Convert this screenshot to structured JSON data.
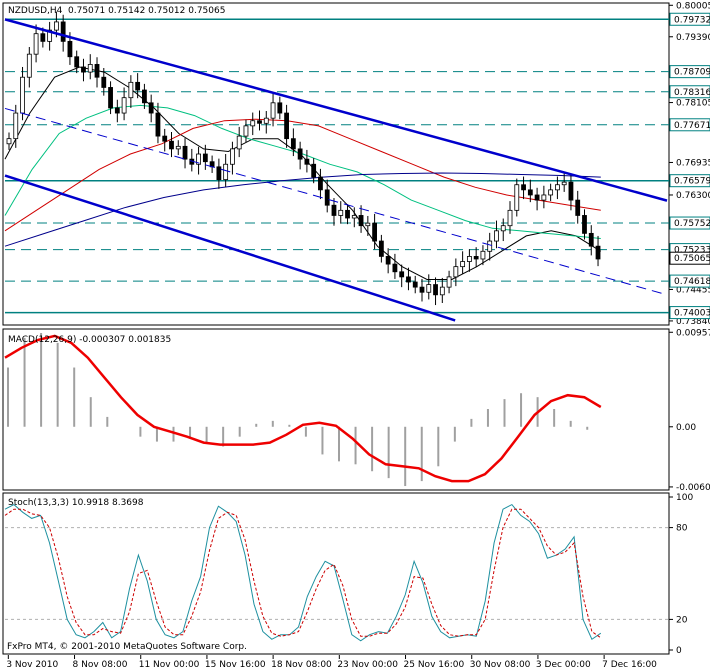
{
  "colors": {
    "frame": "#000000",
    "candle": "#000000",
    "channel": "#0000cc",
    "level_line": "#008080",
    "ma_fast": "#000000",
    "ma_mid": "#00c080",
    "ma_red": "#d00000",
    "ma_blue": "#00008b",
    "macd_signal": "#ee0000",
    "macd_hist": "#a0a0a0",
    "stoch_main": "#1e90a0",
    "stoch_signal": "#cc0000",
    "price_box_bg": "#ffffff"
  },
  "chart_data": [
    {
      "type": "line",
      "symbol": "NZDUSD,H4",
      "ohlc_text": "0.75071 0.75142 0.75012 0.75065",
      "current_price": 0.75065,
      "y_ticks": [
        "0.80005",
        "0.79390",
        "0.78105",
        "0.76935",
        "0.76300",
        "0.74455",
        "0.73840"
      ],
      "y_ticks_values": [
        0.80005,
        0.7939,
        0.78105,
        0.76935,
        0.763,
        0.74455,
        0.7384
      ],
      "ylim": [
        0.7378,
        0.8003
      ],
      "price_labels": [
        "0.79732",
        "0.78709",
        "0.78316",
        "0.77671",
        "0.76579",
        "0.75752",
        "0.75233",
        "0.74618",
        "0.74003"
      ],
      "solid_levels": [
        0.79732,
        0.76579,
        0.74003
      ],
      "dashed_levels": [
        0.78709,
        0.78316,
        0.77671,
        0.75752,
        0.75233,
        0.74618
      ],
      "channel": {
        "upper": [
          [
            0.0,
            0.7973
          ],
          [
            1.0,
            0.7619
          ]
        ],
        "lower": [
          [
            0.0,
            0.7668
          ],
          [
            0.68,
            0.7385
          ]
        ],
        "middle": [
          [
            0.0,
            0.7799
          ],
          [
            1.0,
            0.7435
          ]
        ]
      },
      "close_series": [
        0.774,
        0.779,
        0.786,
        0.7905,
        0.7945,
        0.793,
        0.7952,
        0.7968,
        0.793,
        0.79,
        0.788,
        0.787,
        0.7885,
        0.786,
        0.784,
        0.78,
        0.779,
        0.782,
        0.785,
        0.7835,
        0.781,
        0.779,
        0.7745,
        0.7735,
        0.772,
        0.7725,
        0.77,
        0.769,
        0.771,
        0.7695,
        0.7685,
        0.766,
        0.769,
        0.772,
        0.7745,
        0.7765,
        0.7775,
        0.777,
        0.778,
        0.781,
        0.779,
        0.774,
        0.772,
        0.77,
        0.769,
        0.7665,
        0.764,
        0.761,
        0.759,
        0.76,
        0.7585,
        0.759,
        0.757,
        0.7575,
        0.754,
        0.751,
        0.7495,
        0.748,
        0.747,
        0.746,
        0.745,
        0.744,
        0.7455,
        0.7435,
        0.745,
        0.747,
        0.749,
        0.75,
        0.751,
        0.7505,
        0.752,
        0.754,
        0.756,
        0.757,
        0.76,
        0.765,
        0.764,
        0.763,
        0.762,
        0.763,
        0.764,
        0.765,
        0.7655,
        0.762,
        0.759,
        0.7555,
        0.753,
        0.7505
      ],
      "moving_averages": [
        {
          "color": "ma_fast",
          "values": [
            0.77,
            0.779,
            0.786,
            0.788,
            0.787,
            0.784,
            0.78,
            0.775,
            0.772,
            0.7715,
            0.774,
            0.774,
            0.7705,
            0.765,
            0.76,
            0.753,
            0.749,
            0.7465,
            0.7465,
            0.749,
            0.752,
            0.755,
            0.756,
            0.755,
            0.752
          ]
        },
        {
          "color": "ma_mid",
          "values": [
            0.759,
            0.768,
            0.775,
            0.778,
            0.78,
            0.7805,
            0.78,
            0.7785,
            0.776,
            0.774,
            0.7725,
            0.771,
            0.769,
            0.7675,
            0.765,
            0.762,
            0.76,
            0.758,
            0.7565,
            0.756,
            0.7555,
            0.755,
            0.7545
          ]
        },
        {
          "color": "ma_red",
          "values": [
            0.756,
            0.76,
            0.764,
            0.768,
            0.771,
            0.773,
            0.776,
            0.7775,
            0.7778,
            0.7775,
            0.7765,
            0.774,
            0.7715,
            0.769,
            0.7665,
            0.7645,
            0.763,
            0.762,
            0.761,
            0.76
          ]
        },
        {
          "color": "ma_blue",
          "values": [
            0.753,
            0.7555,
            0.758,
            0.7605,
            0.7625,
            0.764,
            0.765,
            0.7658,
            0.7665,
            0.767,
            0.7672,
            0.7673,
            0.7672,
            0.767,
            0.7668,
            0.7665
          ]
        }
      ]
    },
    {
      "type": "area",
      "title": "MACD(12,26,9) -0.000307 0.001835",
      "y_ticks": [
        "0.009570",
        "0.00",
        "-0.006090"
      ],
      "y_ticks_values": [
        0.00957,
        0.0,
        -0.00609
      ],
      "ylim": [
        -0.0063,
        0.0098
      ],
      "signal": [
        0.007,
        0.008,
        0.0088,
        0.0092,
        0.0085,
        0.007,
        0.005,
        0.003,
        0.0012,
        0.0,
        -0.0005,
        -0.001,
        -0.0016,
        -0.0018,
        -0.0018,
        -0.0018,
        -0.0016,
        -0.0008,
        0.0002,
        0.0004,
        0.0001,
        -0.0012,
        -0.0028,
        -0.0038,
        -0.004,
        -0.0042,
        -0.005,
        -0.0055,
        -0.0055,
        -0.0048,
        -0.0032,
        -0.001,
        0.0012,
        0.0026,
        0.0032,
        0.003,
        0.002
      ],
      "histogram": [
        0.006,
        0.009,
        0.0095,
        0.0085,
        0.006,
        0.003,
        0.001,
        0.0,
        -0.001,
        -0.0015,
        -0.0015,
        -0.0012,
        -0.0016,
        -0.002,
        -0.001,
        0.0003,
        0.0006,
        0.0002,
        -0.001,
        -0.0028,
        -0.0035,
        -0.0038,
        -0.0045,
        -0.0052,
        -0.006,
        -0.0055,
        -0.004,
        -0.0015,
        0.0008,
        0.0018,
        0.0028,
        0.0034,
        0.003,
        0.0018,
        0.0006,
        -0.0003
      ]
    },
    {
      "type": "line",
      "title": "Stoch(13,3,3) 10.9918 8.3698",
      "y_ticks": [
        "100",
        "80",
        "20",
        "0"
      ],
      "y_ticks_values": [
        100,
        80,
        20,
        0
      ],
      "ylim": [
        0,
        100
      ],
      "x_tick_labels": [
        "3 Nov 2010",
        "8 Nov 08:00",
        "11 Nov 00:00",
        "15 Nov 16:00",
        "18 Nov 08:00",
        "23 Nov 00:00",
        "25 Nov 16:00",
        "30 Nov 08:00",
        "3 Dec 00:00",
        "7 Dec 16:00"
      ],
      "main": [
        92,
        95,
        90,
        86,
        88,
        70,
        45,
        20,
        10,
        8,
        12,
        18,
        8,
        12,
        40,
        62,
        45,
        20,
        10,
        8,
        12,
        32,
        48,
        80,
        94,
        90,
        84,
        62,
        30,
        12,
        7,
        10,
        10,
        15,
        35,
        48,
        58,
        55,
        33,
        10,
        6,
        10,
        12,
        11,
        22,
        36,
        58,
        44,
        22,
        12,
        8,
        9,
        10,
        9,
        32,
        70,
        92,
        95,
        88,
        84,
        76,
        60,
        62,
        66,
        74,
        20,
        7,
        11
      ],
      "signal": [
        88,
        92,
        92,
        89,
        88,
        80,
        60,
        35,
        18,
        10,
        10,
        14,
        12,
        11,
        25,
        50,
        52,
        32,
        15,
        10,
        10,
        22,
        38,
        65,
        86,
        90,
        88,
        72,
        45,
        22,
        11,
        9,
        10,
        12,
        25,
        40,
        52,
        56,
        42,
        20,
        9,
        9,
        11,
        11,
        17,
        28,
        48,
        47,
        30,
        16,
        10,
        9,
        10,
        10,
        20,
        52,
        80,
        92,
        92,
        86,
        80,
        68,
        62,
        64,
        70,
        35,
        12,
        8
      ]
    }
  ],
  "copyright": "FxPro MT4, © 2001-2010 MetaQuotes Software Corp."
}
